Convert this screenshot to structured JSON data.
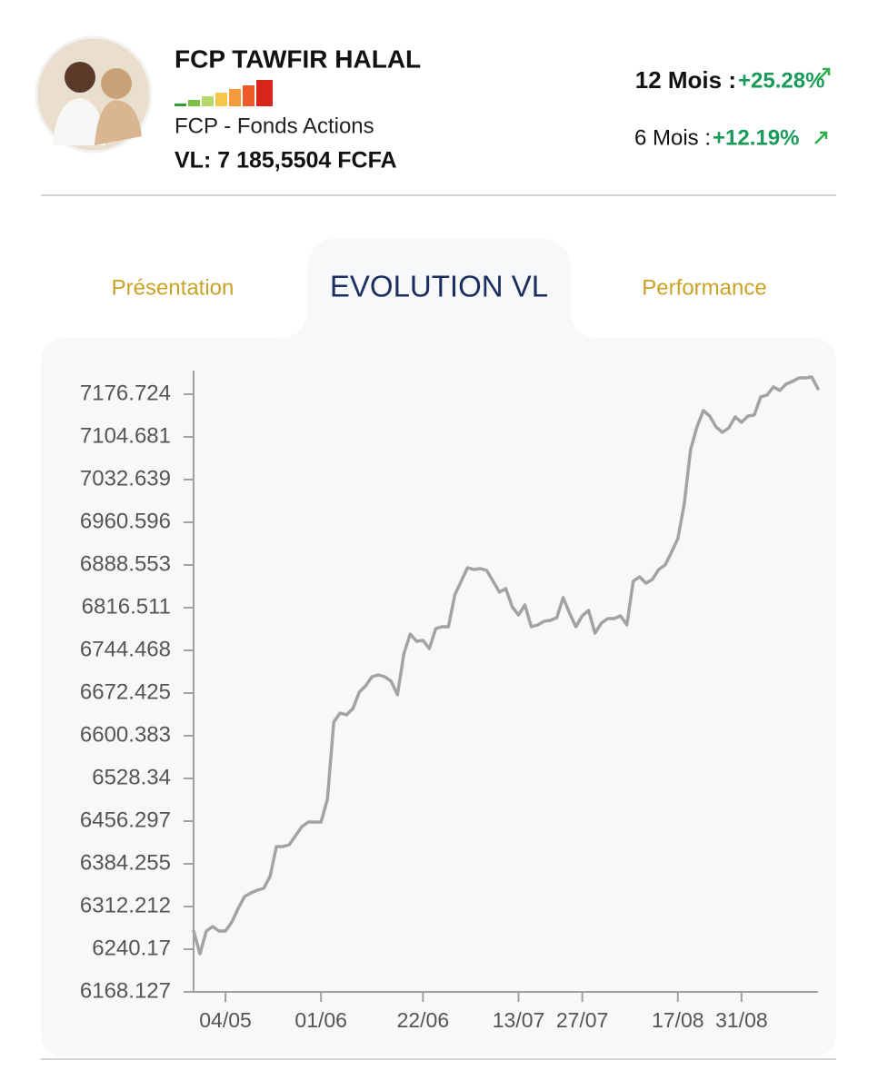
{
  "header": {
    "title": "FCP TAWFIR HALAL",
    "subtitle": "FCP - Fonds Actions",
    "vl": "VL: 7 185,5504 FCFA",
    "performance": [
      {
        "label": "12 Mois :",
        "value": "+25.28%"
      },
      {
        "label": "6 Mois :",
        "value": "+12.19%"
      }
    ]
  },
  "tabs": [
    "Présentation",
    "EVOLUTION VL",
    "Performance"
  ],
  "chart_data": {
    "type": "line",
    "color": "#a3a3a3",
    "categories": [
      null,
      null,
      null,
      null,
      null,
      "04/05",
      null,
      null,
      null,
      null,
      null,
      null,
      null,
      null,
      null,
      null,
      null,
      null,
      null,
      null,
      "01/06",
      null,
      null,
      null,
      null,
      null,
      null,
      null,
      null,
      null,
      null,
      null,
      null,
      null,
      null,
      null,
      "22/06",
      null,
      null,
      null,
      null,
      null,
      null,
      null,
      null,
      null,
      null,
      null,
      null,
      null,
      null,
      "13/07",
      null,
      null,
      null,
      null,
      null,
      null,
      null,
      null,
      null,
      "27/07",
      null,
      null,
      null,
      null,
      null,
      null,
      null,
      null,
      null,
      null,
      null,
      null,
      null,
      null,
      "17/08",
      null,
      null,
      null,
      null,
      null,
      null,
      null,
      null,
      null,
      "31/08",
      null,
      null,
      null,
      null,
      null,
      null,
      null,
      null,
      null,
      null,
      null,
      null
    ],
    "values": [
      6270.8,
      6232.5,
      6270.8,
      6278.5,
      6270.8,
      6270.8,
      6286.2,
      6309.1,
      6329.1,
      6335.2,
      6339.8,
      6342.9,
      6362.8,
      6413.4,
      6413.4,
      6416.4,
      6431.8,
      6447.1,
      6454.8,
      6454.8,
      6454.8,
      6493.1,
      6623.4,
      6638.7,
      6635.6,
      6646.4,
      6673.9,
      6684.7,
      6700.0,
      6703.1,
      6700.0,
      6692.3,
      6669.4,
      6738.3,
      6772.0,
      6759.8,
      6761.3,
      6747.5,
      6781.2,
      6784.3,
      6784.3,
      6838.0,
      6861.0,
      6883.9,
      6880.9,
      6882.4,
      6879.3,
      6861.0,
      6842.6,
      6848.7,
      6818.0,
      6804.2,
      6821.1,
      6784.3,
      6787.4,
      6793.5,
      6795.0,
      6799.6,
      6833.4,
      6807.3,
      6784.3,
      6802.7,
      6811.9,
      6773.6,
      6790.4,
      6798.1,
      6798.1,
      6802.7,
      6787.4,
      6861.0,
      6868.6,
      6857.9,
      6864.0,
      6880.9,
      6888.5,
      6910.0,
      6933.0,
      6991.2,
      7083.2,
      7121.5,
      7149.1,
      7139.9,
      7121.5,
      7112.3,
      7120.0,
      7138.4,
      7129.2,
      7139.9,
      7141.5,
      7172.1,
      7175.2,
      7189.0,
      7182.9,
      7193.6,
      7198.2,
      7204.3,
      7204.3,
      7205.8,
      7185.9
    ],
    "ylim": [
      6168.127,
      7216.5
    ],
    "yticks": [
      6168.127,
      6240.17,
      6312.212,
      6384.255,
      6456.297,
      6528.34,
      6600.383,
      6672.425,
      6744.468,
      6816.511,
      6888.553,
      6960.596,
      7032.639,
      7104.681,
      7176.724
    ]
  }
}
